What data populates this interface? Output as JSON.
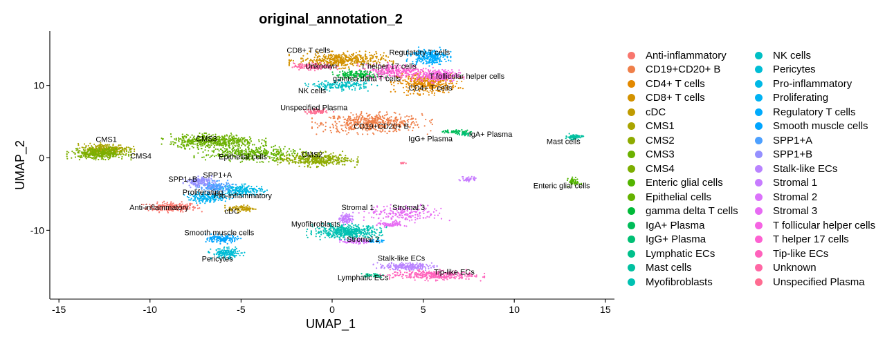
{
  "chart_data": {
    "type": "scatter",
    "title": "original_annotation_2",
    "xlabel": "UMAP_1",
    "ylabel": "UMAP_2",
    "xlim": [
      -15.5,
      15.5
    ],
    "ylim": [
      -19.5,
      17.5
    ],
    "xticks": [
      -15,
      -10,
      -5,
      0,
      5,
      10,
      15
    ],
    "xtick_labels": [
      "-15",
      "-10",
      "-5",
      "0",
      "5",
      "10",
      "15"
    ],
    "yticks": [
      -10,
      0,
      10
    ],
    "ytick_labels": [
      "-10",
      "0",
      "10"
    ],
    "grid": false,
    "legend_position": "right",
    "legend_columns": 2,
    "series": [
      {
        "name": "Anti-inflammatory",
        "color": "#F8766D",
        "clusters": [
          {
            "cx": -8.8,
            "cy": -6.8,
            "rx": 1.5,
            "ry": 0.7,
            "n": 220
          }
        ]
      },
      {
        "name": "CD19+CD20+ B",
        "color": "#EF7F49",
        "clusters": [
          {
            "cx": 2.2,
            "cy": 4.8,
            "rx": 3.0,
            "ry": 1.4,
            "n": 520
          }
        ]
      },
      {
        "name": "CD4+ T cells",
        "color": "#E38900",
        "clusters": [
          {
            "cx": 5.2,
            "cy": 10.3,
            "rx": 1.8,
            "ry": 1.5,
            "n": 420
          }
        ]
      },
      {
        "name": "CD8+ T cells",
        "color": "#D39200",
        "clusters": [
          {
            "cx": 0.5,
            "cy": 13.5,
            "rx": 2.6,
            "ry": 1.1,
            "n": 460
          }
        ]
      },
      {
        "name": "cDC",
        "color": "#C09B00",
        "clusters": [
          {
            "cx": -5.0,
            "cy": -7.0,
            "rx": 0.8,
            "ry": 0.5,
            "n": 90
          }
        ]
      },
      {
        "name": "CMS1",
        "color": "#A9A400",
        "clusters": [
          {
            "cx": -12.4,
            "cy": 1.2,
            "rx": 1.4,
            "ry": 0.8,
            "n": 300
          }
        ]
      },
      {
        "name": "CMS2",
        "color": "#8EAB00",
        "clusters": [
          {
            "cx": -1.0,
            "cy": -0.2,
            "rx": 2.2,
            "ry": 1.0,
            "n": 420
          }
        ]
      },
      {
        "name": "CMS3",
        "color": "#6BB100",
        "clusters": [
          {
            "cx": -6.5,
            "cy": 2.3,
            "rx": 2.6,
            "ry": 1.0,
            "n": 500
          }
        ]
      },
      {
        "name": "CMS4",
        "color": "#7CAE00",
        "clusters": [
          {
            "cx": -12.8,
            "cy": 0.6,
            "rx": 1.6,
            "ry": 0.8,
            "n": 360
          }
        ]
      },
      {
        "name": "Enteric glial cells",
        "color": "#53B400",
        "clusters": [
          {
            "cx": 13.3,
            "cy": -3.3,
            "rx": 0.35,
            "ry": 0.6,
            "n": 50
          }
        ]
      },
      {
        "name": "Epithelial cells",
        "color": "#64B200",
        "clusters": [
          {
            "cx": -4.5,
            "cy": 0.6,
            "rx": 2.8,
            "ry": 1.1,
            "n": 360
          }
        ]
      },
      {
        "name": "gamma delta T cells",
        "color": "#00BA38",
        "clusters": [
          {
            "cx": 1.5,
            "cy": 11.5,
            "rx": 1.5,
            "ry": 0.6,
            "n": 160
          }
        ]
      },
      {
        "name": "IgA+ Plasma",
        "color": "#00BC59",
        "clusters": [
          {
            "cx": 6.8,
            "cy": 3.6,
            "rx": 0.9,
            "ry": 0.3,
            "n": 60
          }
        ]
      },
      {
        "name": "IgG+ Plasma",
        "color": "#00BF74",
        "clusters": [
          {
            "cx": 7.3,
            "cy": 3.3,
            "rx": 0.3,
            "ry": 0.3,
            "n": 30
          }
        ]
      },
      {
        "name": "Lymphatic ECs",
        "color": "#00C08B",
        "clusters": [
          {
            "cx": 2.2,
            "cy": -16.2,
            "rx": 0.7,
            "ry": 0.3,
            "n": 40
          }
        ]
      },
      {
        "name": "Mast cells",
        "color": "#00C0A0",
        "clusters": [
          {
            "cx": 13.3,
            "cy": 2.9,
            "rx": 0.5,
            "ry": 0.4,
            "n": 70
          }
        ]
      },
      {
        "name": "Myofibroblasts",
        "color": "#00C1B2",
        "clusters": [
          {
            "cx": 0.8,
            "cy": -10.2,
            "rx": 2.0,
            "ry": 1.0,
            "n": 480
          }
        ]
      },
      {
        "name": "NK cells",
        "color": "#00BFC4",
        "clusters": [
          {
            "cx": 0.5,
            "cy": 10.0,
            "rx": 1.8,
            "ry": 0.7,
            "n": 180
          }
        ]
      },
      {
        "name": "Pericytes",
        "color": "#00BDD5",
        "clusters": [
          {
            "cx": -5.8,
            "cy": -13.2,
            "rx": 0.9,
            "ry": 0.8,
            "n": 170
          }
        ]
      },
      {
        "name": "Pro-inflammatory",
        "color": "#00B8E5",
        "clusters": [
          {
            "cx": -5.0,
            "cy": -4.5,
            "rx": 1.3,
            "ry": 0.8,
            "n": 200
          }
        ]
      },
      {
        "name": "Proliferating",
        "color": "#00B2F3",
        "clusters": [
          {
            "cx": -6.8,
            "cy": -5.5,
            "rx": 1.2,
            "ry": 0.7,
            "n": 180
          }
        ]
      },
      {
        "name": "Regulatory T cells",
        "color": "#00ABFD",
        "clusters": [
          {
            "cx": 5.3,
            "cy": 14.0,
            "rx": 1.1,
            "ry": 1.2,
            "n": 260
          }
        ]
      },
      {
        "name": "Smooth muscle cells",
        "color": "#00A5FF",
        "clusters": [
          {
            "cx": -6.0,
            "cy": -11.2,
            "rx": 0.9,
            "ry": 0.6,
            "n": 140
          },
          {
            "cx": 2.2,
            "cy": -11.5,
            "rx": 0.6,
            "ry": 0.2,
            "n": 40
          }
        ]
      },
      {
        "name": "SPP1+A",
        "color": "#4DA0FF",
        "clusters": [
          {
            "cx": -6.4,
            "cy": -4.0,
            "rx": 1.0,
            "ry": 0.8,
            "n": 160
          }
        ]
      },
      {
        "name": "SPP1+B",
        "color": "#9590FF",
        "clusters": [
          {
            "cx": -7.3,
            "cy": -3.3,
            "rx": 0.8,
            "ry": 0.7,
            "n": 150
          }
        ]
      },
      {
        "name": "Stalk-like ECs",
        "color": "#B983FF",
        "clusters": [
          {
            "cx": 4.0,
            "cy": -15.0,
            "rx": 1.6,
            "ry": 0.5,
            "n": 200
          }
        ]
      },
      {
        "name": "Stromal 1",
        "color": "#C77CFF",
        "clusters": [
          {
            "cx": 0.8,
            "cy": -8.4,
            "rx": 0.4,
            "ry": 0.8,
            "n": 90
          },
          {
            "cx": 7.5,
            "cy": -2.9,
            "rx": 0.5,
            "ry": 0.4,
            "n": 40
          }
        ]
      },
      {
        "name": "Stromal 2",
        "color": "#DB72FB",
        "clusters": [
          {
            "cx": 1.3,
            "cy": -11.5,
            "rx": 0.8,
            "ry": 0.4,
            "n": 80
          }
        ]
      },
      {
        "name": "Stromal 3",
        "color": "#E76BF3",
        "clusters": [
          {
            "cx": 4.0,
            "cy": -7.7,
            "rx": 2.3,
            "ry": 1.2,
            "n": 200
          },
          {
            "cx": 3.2,
            "cy": -9.2,
            "rx": 0.8,
            "ry": 0.4,
            "n": 70
          }
        ]
      },
      {
        "name": "T follicular helper cells",
        "color": "#F564E3",
        "clusters": [
          {
            "cx": 5.8,
            "cy": 11.3,
            "rx": 1.3,
            "ry": 0.9,
            "n": 260
          }
        ]
      },
      {
        "name": "T helper 17 cells",
        "color": "#FD61D1",
        "clusters": [
          {
            "cx": 3.5,
            "cy": 12.0,
            "rx": 1.9,
            "ry": 1.0,
            "n": 280
          }
        ]
      },
      {
        "name": "Tip-like ECs",
        "color": "#FF62BC",
        "clusters": [
          {
            "cx": 5.5,
            "cy": -16.2,
            "rx": 2.6,
            "ry": 0.7,
            "n": 320
          }
        ]
      },
      {
        "name": "Unknown",
        "color": "#FF67A4",
        "clusters": [
          {
            "cx": -1.0,
            "cy": 12.6,
            "rx": 1.2,
            "ry": 0.5,
            "n": 140
          }
        ]
      },
      {
        "name": "Unspecified Plasma",
        "color": "#FF6C91",
        "clusters": [
          {
            "cx": -0.8,
            "cy": 6.4,
            "rx": 0.8,
            "ry": 0.4,
            "n": 60
          },
          {
            "cx": 3.9,
            "cy": -0.7,
            "rx": 0.2,
            "ry": 0.2,
            "n": 8
          }
        ]
      }
    ],
    "annotations": [
      {
        "text": "CD8+ T cells",
        "x": -1.3,
        "y": 14.5
      },
      {
        "text": "Regulatory T cells",
        "x": 4.8,
        "y": 14.2
      },
      {
        "text": "Unknown",
        "x": -0.6,
        "y": 12.3
      },
      {
        "text": "T helper 17 cells",
        "x": 3.1,
        "y": 12.3
      },
      {
        "text": "T follicular helper cells",
        "x": 7.4,
        "y": 10.9
      },
      {
        "text": "gamma delta T cells",
        "x": 1.9,
        "y": 10.6
      },
      {
        "text": "CD4+ T cells",
        "x": 5.4,
        "y": 9.3
      },
      {
        "text": "NK cells",
        "x": -1.1,
        "y": 8.9
      },
      {
        "text": "Unspecified Plasma",
        "x": -1.0,
        "y": 6.6
      },
      {
        "text": "CD19+CD20+ B",
        "x": 2.7,
        "y": 4.0
      },
      {
        "text": "IgA+ Plasma",
        "x": 8.7,
        "y": 2.9
      },
      {
        "text": "IgG+ Plasma",
        "x": 5.4,
        "y": 2.3
      },
      {
        "text": "Mast cells",
        "x": 12.7,
        "y": 1.9
      },
      {
        "text": "CMS1",
        "x": -12.4,
        "y": 2.2
      },
      {
        "text": "CMS3",
        "x": -6.9,
        "y": 2.3
      },
      {
        "text": "CMS4",
        "x": -10.5,
        "y": -0.1
      },
      {
        "text": "Epithelial cells",
        "x": -4.9,
        "y": -0.2
      },
      {
        "text": "CMS2",
        "x": -1.1,
        "y": 0.1
      },
      {
        "text": "Enteric glial cells",
        "x": 12.6,
        "y": -4.2
      },
      {
        "text": "SPP1+A",
        "x": -6.3,
        "y": -2.7
      },
      {
        "text": "SPP1+B",
        "x": -8.2,
        "y": -3.3
      },
      {
        "text": "Proliferating",
        "x": -7.1,
        "y": -5.1
      },
      {
        "text": "Pro-inflammatory",
        "x": -4.9,
        "y": -5.6
      },
      {
        "text": "cDC",
        "x": -5.5,
        "y": -7.7
      },
      {
        "text": "Anti-inflammatory",
        "x": -9.5,
        "y": -7.2
      },
      {
        "text": "Stromal 1",
        "x": 1.4,
        "y": -7.2
      },
      {
        "text": "Stromal 3",
        "x": 4.2,
        "y": -7.2
      },
      {
        "text": "Myofibroblasts",
        "x": -0.9,
        "y": -9.5
      },
      {
        "text": "Smooth muscle cells",
        "x": -6.2,
        "y": -10.7
      },
      {
        "text": "Stromal 2",
        "x": 1.7,
        "y": -11.6
      },
      {
        "text": "Pericytes",
        "x": -6.3,
        "y": -14.3
      },
      {
        "text": "Stalk-like ECs",
        "x": 3.8,
        "y": -14.2
      },
      {
        "text": "Tip-like ECs",
        "x": 6.7,
        "y": -16.1
      },
      {
        "text": "Lymphatic ECs",
        "x": 1.7,
        "y": -16.9
      }
    ]
  }
}
